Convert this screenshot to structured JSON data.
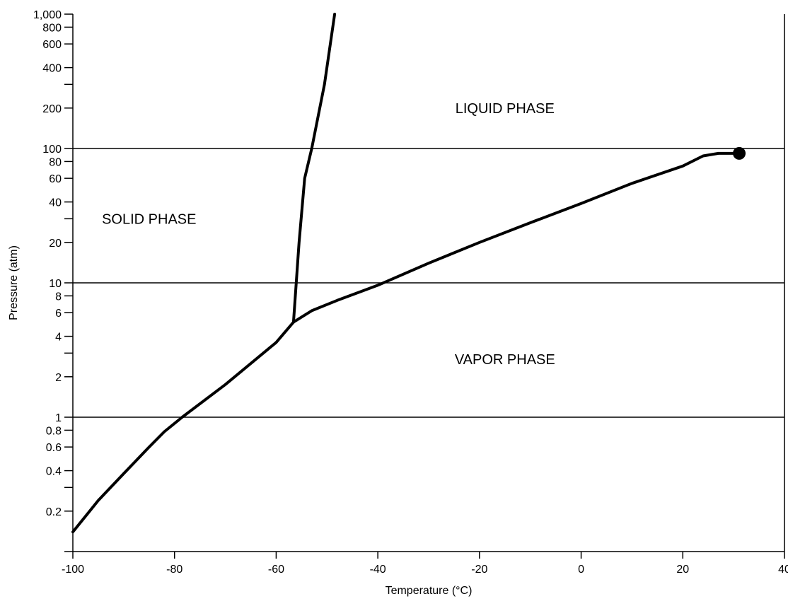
{
  "chart_data": {
    "type": "line",
    "title": "",
    "xlabel": "Temperature (°C)",
    "ylabel": "Pressure (atm)",
    "xlim": [
      -100,
      40
    ],
    "ylim": [
      0.1,
      1000
    ],
    "y_scale": "log",
    "x_ticks": [
      {
        "value": -100,
        "label": "-100"
      },
      {
        "value": -80,
        "label": "-80"
      },
      {
        "value": -60,
        "label": "-60"
      },
      {
        "value": -40,
        "label": "-40"
      },
      {
        "value": -20,
        "label": "-20"
      },
      {
        "value": 0,
        "label": "0"
      },
      {
        "value": 20,
        "label": "20"
      },
      {
        "value": 40,
        "label": "40"
      }
    ],
    "y_ticks": [
      {
        "value": 0.1,
        "label": ""
      },
      {
        "value": 0.2,
        "label": "0.2"
      },
      {
        "value": 0.3,
        "label": ""
      },
      {
        "value": 0.4,
        "label": "0.4"
      },
      {
        "value": 0.6,
        "label": "0.6"
      },
      {
        "value": 0.8,
        "label": "0.8"
      },
      {
        "value": 1,
        "label": "1"
      },
      {
        "value": 2,
        "label": "2"
      },
      {
        "value": 3,
        "label": ""
      },
      {
        "value": 4,
        "label": "4"
      },
      {
        "value": 6,
        "label": "6"
      },
      {
        "value": 8,
        "label": "8"
      },
      {
        "value": 10,
        "label": "10"
      },
      {
        "value": 20,
        "label": "20"
      },
      {
        "value": 30,
        "label": ""
      },
      {
        "value": 40,
        "label": "40"
      },
      {
        "value": 60,
        "label": "60"
      },
      {
        "value": 80,
        "label": "80"
      },
      {
        "value": 100,
        "label": "100"
      },
      {
        "value": 200,
        "label": "200"
      },
      {
        "value": 300,
        "label": ""
      },
      {
        "value": 400,
        "label": "400"
      },
      {
        "value": 600,
        "label": "600"
      },
      {
        "value": 800,
        "label": "800"
      },
      {
        "value": 1000,
        "label": "1,000"
      }
    ],
    "gridlines_y": [
      1,
      10,
      100
    ],
    "grid": false,
    "series": [
      {
        "points": [
          [
            -100,
            0.14
          ],
          [
            -95,
            0.24
          ],
          [
            -90,
            0.38
          ],
          [
            -85,
            0.6
          ],
          [
            -82,
            0.78
          ],
          [
            -78.5,
            1.0
          ],
          [
            -70,
            1.75
          ],
          [
            -60,
            3.6
          ],
          [
            -56.6,
            5.1
          ],
          [
            -53,
            6.2
          ],
          [
            -48,
            7.4
          ],
          [
            -40,
            9.6
          ],
          [
            -30,
            14
          ],
          [
            -20,
            20
          ],
          [
            -10,
            28
          ],
          [
            0,
            39
          ],
          [
            10,
            55
          ],
          [
            20,
            74
          ],
          [
            24,
            88
          ],
          [
            27,
            92
          ],
          [
            31,
            92
          ]
        ]
      },
      {
        "points": [
          [
            -56.6,
            5.1
          ],
          [
            -55.5,
            20
          ],
          [
            -54.4,
            60
          ],
          [
            -53,
            100
          ],
          [
            -50.5,
            300
          ],
          [
            -48.5,
            1000
          ]
        ]
      }
    ],
    "markers": [
      {
        "x": 31.1,
        "y": 92
      }
    ],
    "annotations": [
      {
        "text": "LIQUID PHASE",
        "x": -15,
        "y": 200
      },
      {
        "text": "SOLID PHASE",
        "x": -85,
        "y": 30
      },
      {
        "text": "VAPOR PHASE",
        "x": -15,
        "y": 2.7
      }
    ]
  }
}
